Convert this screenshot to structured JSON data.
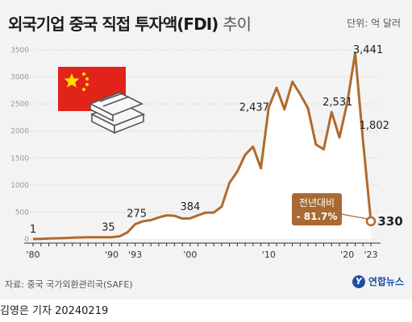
{
  "title": {
    "main": "외국기업 중국 직접 투자액(FDI)",
    "sub": "추이"
  },
  "unit": "단위: 억 달러",
  "source": "자료: 중국 국가외환관리국(SAFE)",
  "logo": {
    "mark": "Y",
    "text": "연합뉴스"
  },
  "credit": {
    "author": "김영은 기자",
    "date": "20240219"
  },
  "colors": {
    "line": "#b06a2e",
    "area": "#ffffff",
    "grid": "#d7d7d7",
    "callout": "#a86a32",
    "flag": "#e2231a",
    "star": "#ffde00"
  },
  "icons": {
    "flag": "china-flag-icon",
    "money": "money-stack-icon"
  },
  "callout": {
    "line1": "전년대비",
    "line2": "- 81.7%"
  },
  "chart_data": {
    "type": "area",
    "ylim": [
      0,
      3500
    ],
    "yticks": [
      "0",
      "500",
      "1000",
      "1500",
      "2000",
      "2500",
      "3000",
      "3500"
    ],
    "xtick_labels": [
      "'80",
      "'90",
      "'93",
      "'00",
      "'10",
      "'20",
      "'23"
    ],
    "x": [
      1980,
      1981,
      1982,
      1983,
      1984,
      1985,
      1986,
      1987,
      1988,
      1989,
      1990,
      1991,
      1992,
      1993,
      1994,
      1995,
      1996,
      1997,
      1998,
      1999,
      2000,
      2001,
      2002,
      2003,
      2004,
      2005,
      2006,
      2007,
      2008,
      2009,
      2010,
      2011,
      2012,
      2013,
      2014,
      2015,
      2016,
      2017,
      2018,
      2019,
      2020,
      2021,
      2022,
      2023
    ],
    "values": [
      1,
      5,
      12,
      15,
      20,
      25,
      30,
      35,
      35,
      35,
      35,
      50,
      120,
      275,
      330,
      350,
      400,
      440,
      430,
      380,
      384,
      440,
      490,
      490,
      600,
      1040,
      1250,
      1560,
      1710,
      1310,
      2437,
      2800,
      2400,
      2910,
      2680,
      2420,
      1750,
      1660,
      2350,
      1880,
      2531,
      3441,
      1802,
      330
    ],
    "data_labels": [
      {
        "x": 1980,
        "text": "1"
      },
      {
        "x": 1990,
        "text": "35"
      },
      {
        "x": 1993,
        "text": "275"
      },
      {
        "x": 2000,
        "text": "384"
      },
      {
        "x": 2010,
        "text": "2,437"
      },
      {
        "x": 2020,
        "text": "2,531"
      },
      {
        "x": 2021,
        "text": "3,441"
      },
      {
        "x": 2022,
        "text": "1,802"
      },
      {
        "x": 2023,
        "text": "330"
      }
    ]
  }
}
